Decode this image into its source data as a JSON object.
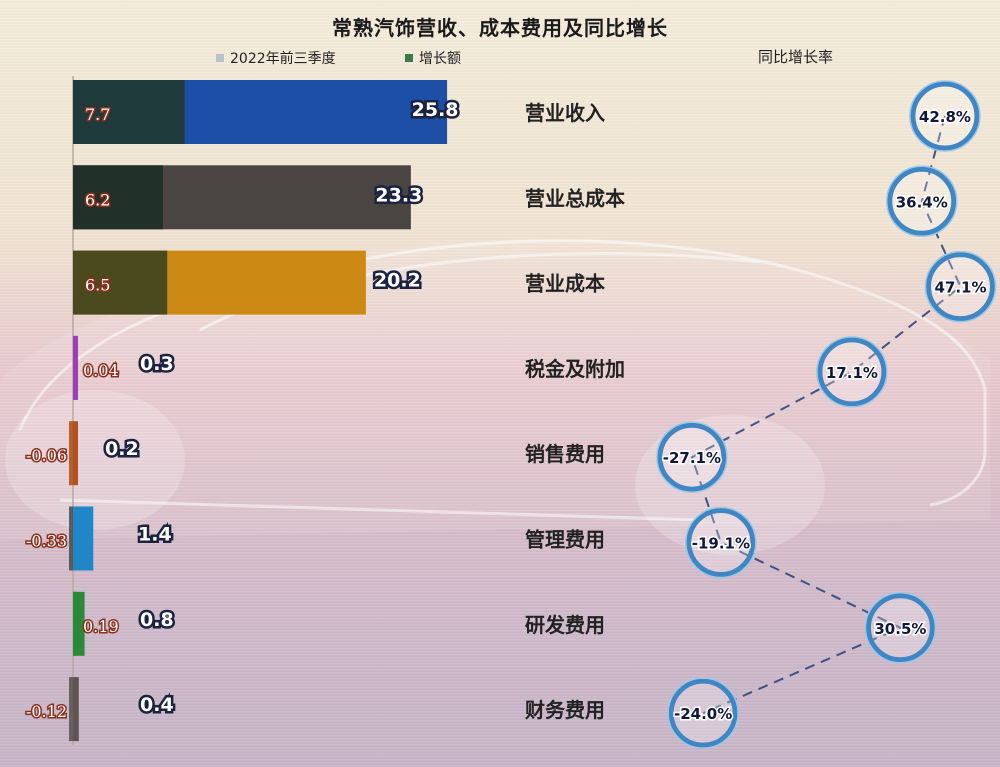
{
  "chart_data": {
    "type": "bar",
    "title": "常熟汽饰营收、成本费用及同比增长",
    "categories": [
      "营业收入",
      "营业总成本",
      "营业成本",
      "税金及附加",
      "销售费用",
      "管理费用",
      "研发费用",
      "财务费用"
    ],
    "series": [
      {
        "name": "2022年前三季度",
        "values": [
          25.8,
          23.3,
          20.2,
          0.3,
          0.2,
          1.4,
          0.8,
          0.4
        ],
        "labels": [
          "25.8",
          "23.3",
          "20.2",
          "0.3",
          "0.2",
          "1.4",
          "0.8",
          "0.4"
        ]
      },
      {
        "name": "增长额",
        "values": [
          7.7,
          6.2,
          6.5,
          0.04,
          -0.06,
          -0.33,
          0.19,
          -0.12
        ],
        "labels": [
          "7.7",
          "6.2",
          "6.5",
          "0.04",
          "-0.06",
          "-0.33",
          "0.19",
          "-0.12"
        ]
      }
    ],
    "yoy_rate": {
      "name": "同比增长率",
      "values": [
        42.8,
        36.4,
        47.1,
        17.1,
        -27.1,
        -19.1,
        30.5,
        -24.0
      ],
      "labels": [
        "42.8%",
        "36.4%",
        "47.1%",
        "17.1%",
        "-27.1%",
        "-19.1%",
        "30.5%",
        "-24.0%"
      ]
    },
    "bar_colors": [
      "#1e4fa6",
      "#4a4442",
      "#cc8a14",
      "#9b3fb5",
      "#b0521f",
      "#1f86c8",
      "#2a8a3a",
      "#5e5552"
    ],
    "growth_colors": [
      "#1f3a3a",
      "#22302a",
      "#4a4a1e",
      "#9b3fb5",
      "#b0521f",
      "#4f4f4f",
      "#2a8a3a",
      "#5e5552"
    ],
    "legend_colors": [
      "#b9c4c9",
      "#3d7a4a"
    ],
    "legend_position": "top",
    "grid": false
  },
  "legend": {
    "series1": "2022年前三季度",
    "series2": "增长额"
  },
  "rate_header": "同比增长率"
}
